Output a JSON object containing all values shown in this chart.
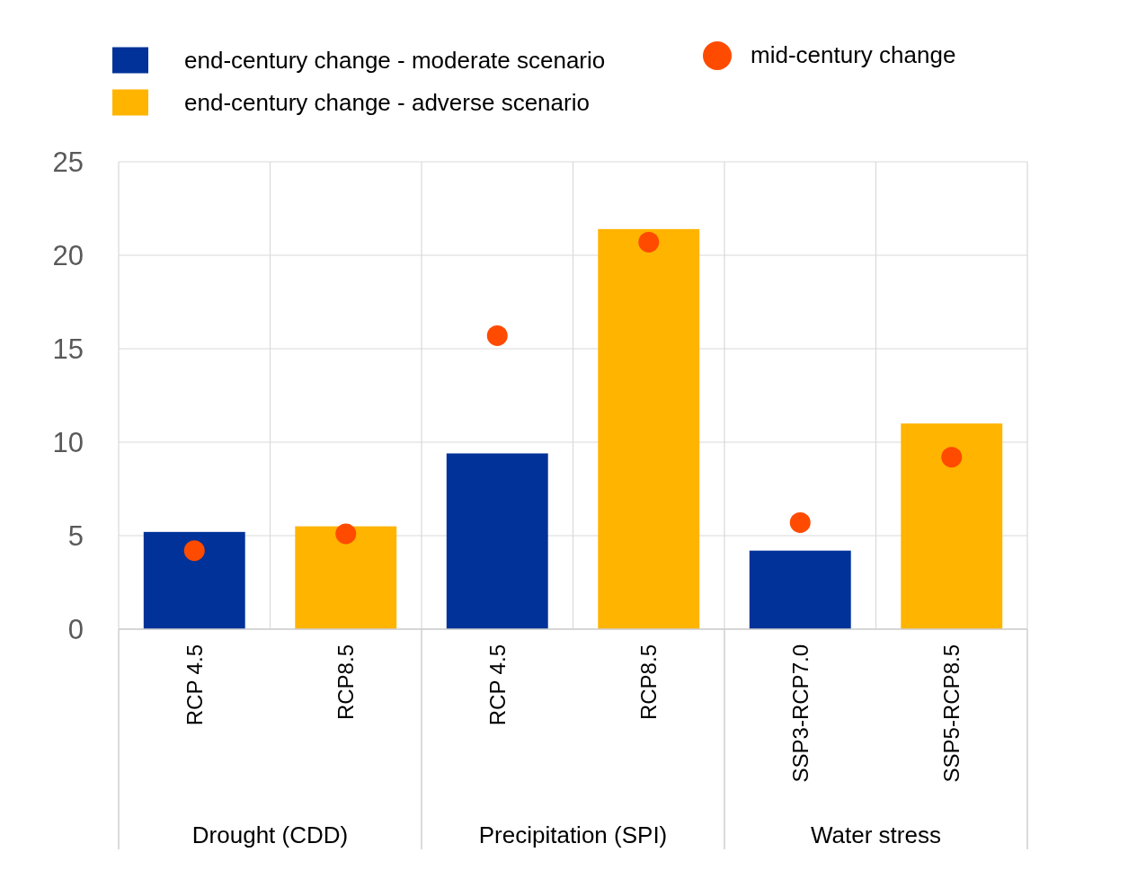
{
  "chart_data": {
    "type": "bar",
    "categories": [
      "RCP 4.5",
      "RCP8.5",
      "RCP 4.5",
      "RCP8.5",
      "SSP3-RCP7.0",
      "SSP5-RCP8.5"
    ],
    "series": [
      {
        "name": "end-century change - moderate scenario",
        "color": "#003299",
        "values": [
          5.2,
          null,
          9.4,
          null,
          4.2,
          null
        ]
      },
      {
        "name": "end-century change - adverse scenario",
        "color": "#ffb400",
        "values": [
          null,
          5.5,
          null,
          21.4,
          null,
          11.0
        ]
      },
      {
        "name": "mid-century change",
        "type": "scatter",
        "color": "#ff4b00",
        "values": [
          4.2,
          5.1,
          15.7,
          20.7,
          5.7,
          9.2
        ]
      }
    ],
    "marker": "circle",
    "ylim": [
      0,
      25
    ],
    "yticks": [
      0,
      5,
      10,
      15,
      20,
      25
    ],
    "grid": true,
    "legend": "top",
    "annotations": [
      "Drought (CDD)",
      "Precipitation (SPI)",
      "Water stress"
    ]
  }
}
